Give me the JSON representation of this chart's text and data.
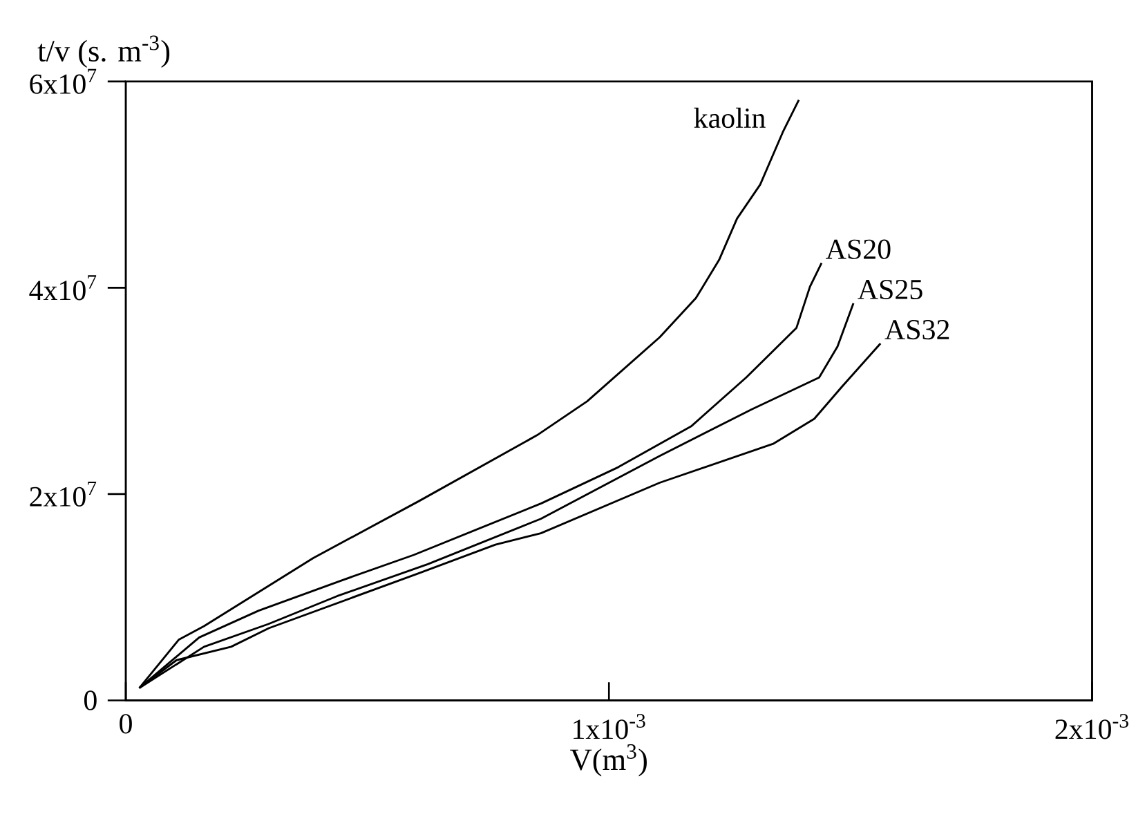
{
  "chart_data": {
    "type": "line",
    "xlabel": "V(m$^{3}$)",
    "ylabel": "t/v (s. m$^{-3}$)",
    "xlim": [
      0,
      0.002
    ],
    "ylim": [
      0,
      60000000
    ],
    "xticks": [
      0,
      {
        "value": 0.001,
        "label": "1x10$^{-3}$"
      },
      {
        "value": 0.002,
        "label": "2x10$^{-3}$"
      }
    ],
    "yticks": [
      0,
      {
        "value": 20000000,
        "label": "2x10$^{7}$"
      },
      {
        "value": 40000000,
        "label": "4x10$^{7}$"
      },
      {
        "value": 60000000,
        "label": "6x10$^{7}$"
      }
    ],
    "grid": false,
    "legend": false,
    "marker": "none",
    "line_style": "solid",
    "series": [
      {
        "name": "kaolin",
        "color": "#000000",
        "x": [
          2.8e-05,
          0.00011,
          0.000162,
          0.000388,
          0.000606,
          0.000851,
          0.000955,
          0.001105,
          0.00118,
          0.001228,
          0.001265,
          0.001313,
          0.00136,
          0.001393
        ],
        "values": [
          1200000,
          5900000,
          7200000,
          13800000,
          19300000,
          25700000,
          29000000,
          35200000,
          39000000,
          42700000,
          46700000,
          50000000,
          55100000,
          58200000
        ]
      },
      {
        "name": "AS20",
        "color": "#000000",
        "x": [
          2.8e-05,
          0.000152,
          0.000275,
          0.000445,
          0.000596,
          0.00086,
          0.001019,
          0.001171,
          0.001284,
          0.001388,
          0.001416,
          0.00144
        ],
        "values": [
          1200000,
          6100000,
          8700000,
          11600000,
          14100000,
          19100000,
          22600000,
          26600000,
          31300000,
          36100000,
          40100000,
          42400000
        ]
      },
      {
        "name": "AS25",
        "color": "#000000",
        "x": [
          2.8e-05,
          0.000162,
          0.000295,
          0.000437,
          0.000625,
          0.000859,
          0.001105,
          0.001295,
          0.001435,
          0.001473,
          0.001506
        ],
        "values": [
          1200000,
          5200000,
          7400000,
          10100000,
          13200000,
          17600000,
          23700000,
          28200000,
          31300000,
          34300000,
          38500000
        ]
      },
      {
        "name": "AS32",
        "color": "#000000",
        "x": [
          2.8e-05,
          0.000105,
          0.000218,
          0.000296,
          0.000605,
          0.000765,
          0.000859,
          0.001105,
          0.001341,
          0.001425,
          0.001482,
          0.001562
        ],
        "values": [
          1200000,
          3900000,
          5200000,
          7000000,
          12300000,
          15100000,
          16200000,
          21100000,
          24900000,
          27300000,
          30400000,
          34600000
        ]
      }
    ]
  }
}
